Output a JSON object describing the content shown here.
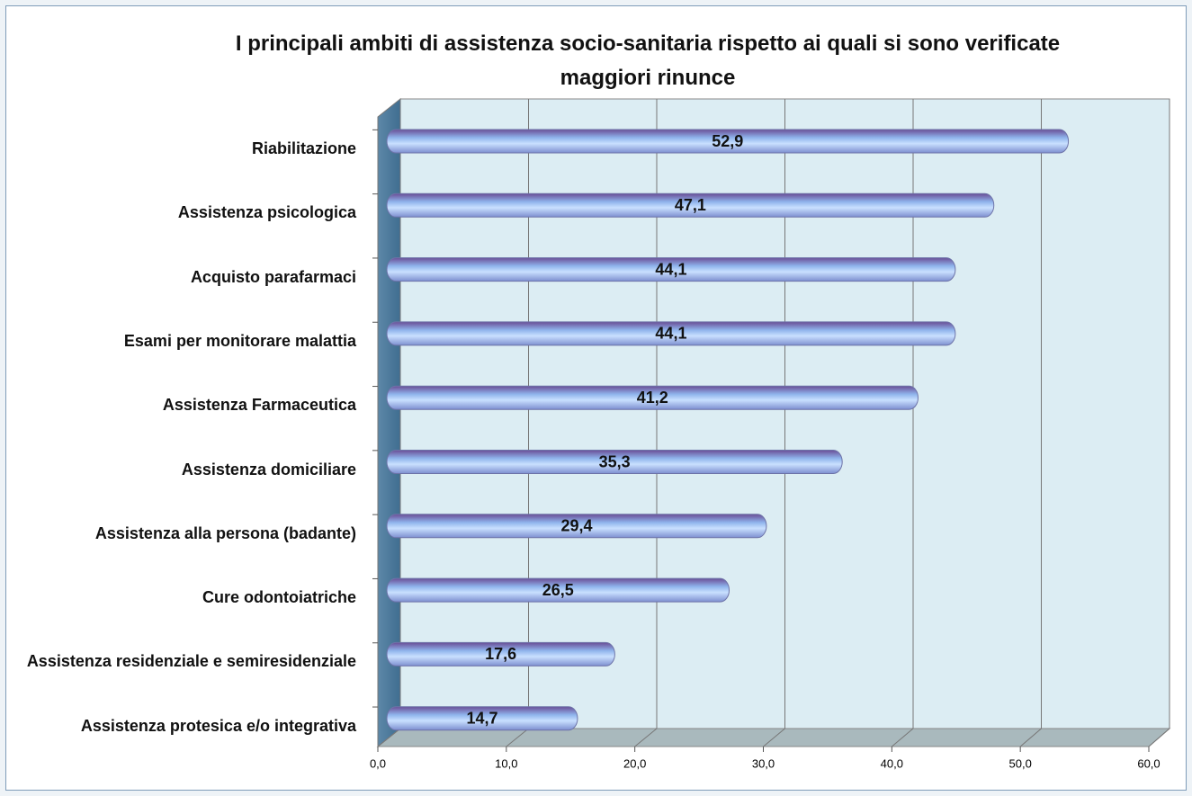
{
  "chart_data": {
    "type": "bar",
    "orientation": "horizontal",
    "title": "I principali ambiti di assistenza socio-sanitaria rispetto ai quali si sono verificate maggiori rinunce",
    "categories": [
      "Riabilitazione",
      "Assistenza psicologica",
      "Acquisto parafarmaci",
      "Esami per monitorare malattia",
      "Assistenza Farmaceutica",
      "Assistenza domiciliare",
      "Assistenza alla persona (badante)",
      "Cure odontoiatriche",
      "Assistenza residenziale e semiresidenziale",
      "Assistenza protesica e/o integrativa"
    ],
    "values": [
      52.9,
      47.1,
      44.1,
      44.1,
      41.2,
      35.3,
      29.4,
      26.5,
      17.6,
      14.7
    ],
    "value_labels": [
      "52,9",
      "47,1",
      "44,1",
      "44,1",
      "41,2",
      "35,3",
      "29,4",
      "26,5",
      "17,6",
      "14,7"
    ],
    "color": "#8fb4ec",
    "xlim": [
      0,
      60
    ],
    "xticks": [
      {
        "value": 0,
        "label": "0,0"
      },
      {
        "value": 10,
        "label": "10,0"
      },
      {
        "value": 20,
        "label": "20,0"
      },
      {
        "value": 30,
        "label": "30,0"
      },
      {
        "value": 40,
        "label": "40,0"
      },
      {
        "value": 50,
        "label": "50,0"
      },
      {
        "value": 60,
        "label": "60,0"
      }
    ],
    "grid": true
  }
}
